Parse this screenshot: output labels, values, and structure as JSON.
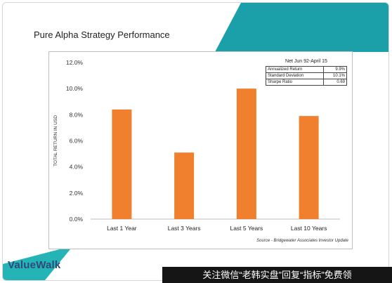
{
  "slide": {
    "title": "Pure Alpha Strategy Performance",
    "source": "Source - Bridgewater Associates Investor Update",
    "logo": "ValueWalk",
    "banner": "关注微信“老韩实盘”回复“指标”免费领"
  },
  "stats": {
    "title": "Net Jun 92-April 15",
    "rows": [
      {
        "label": "Annualized Return",
        "value": "9.9%"
      },
      {
        "label": "Standard Deviation",
        "value": "10.1%"
      },
      {
        "label": "Sharpe Ratio",
        "value": "0.69"
      }
    ]
  },
  "colors": {
    "bar": "#f07f2e",
    "accent_teal": "#1b9fa8",
    "accent_teal_light": "#25b4b6"
  },
  "chart_data": {
    "type": "bar",
    "title": "",
    "xlabel": "",
    "ylabel": "TOTAL RETURN IN USD",
    "categories": [
      "Last 1 Year",
      "Last 3 Years",
      "Last 5 Years",
      "Last 10 Years"
    ],
    "values": [
      8.4,
      5.1,
      10.0,
      7.9
    ],
    "ylim": [
      0,
      12
    ],
    "yticks": [
      "0.0%",
      "2.0%",
      "4.0%",
      "6.0%",
      "8.0%",
      "10.0%",
      "12.0%"
    ],
    "ytick_values": [
      0,
      2,
      4,
      6,
      8,
      10,
      12
    ],
    "grid": false,
    "legend": "none"
  }
}
